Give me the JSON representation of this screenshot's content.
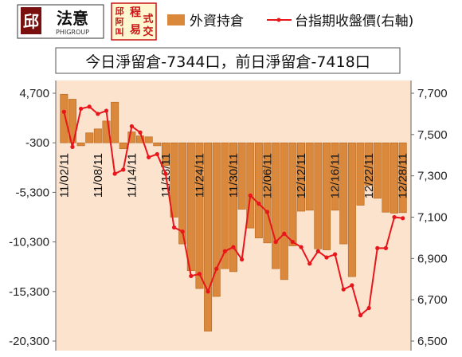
{
  "logos": {
    "left_mark": "邱",
    "left_name": "法意",
    "left_sub": "PHIGROUP",
    "right_chars": [
      "邱",
      "阿",
      "叫",
      "程",
      "式",
      "易",
      "交"
    ]
  },
  "banner": "今日淨留倉-7344口，前日淨留倉-7418口",
  "colors": {
    "bar": "#D9883C",
    "bar_stroke": "#B5651D",
    "line": "#E8151B",
    "plot_bg": "#FBE3CE"
  },
  "chart_data": {
    "type": "bar",
    "legend": [
      {
        "name": "外資持倉",
        "kind": "bar"
      },
      {
        "name": "台指期收盤價(右軸)",
        "kind": "line"
      }
    ],
    "legend_position": "top",
    "grid": false,
    "y_left": {
      "ticks": [
        "4,700",
        "-300",
        "-5,300",
        "-10,300",
        "-15,300",
        "-20,300"
      ],
      "lim": [
        -20300,
        4700
      ]
    },
    "y_right": {
      "ticks": [
        "7,700",
        "7,500",
        "7,300",
        "7,100",
        "6,900",
        "6,700",
        "6,500"
      ],
      "lim": [
        6500,
        7700
      ]
    },
    "date_labels": [
      {
        "text": "11/02/11",
        "index": 0
      },
      {
        "text": "11/08/11",
        "index": 4
      },
      {
        "text": "11/14/11",
        "index": 8
      },
      {
        "text": "11/18/11",
        "index": 12
      },
      {
        "text": "11/24/11",
        "index": 16
      },
      {
        "text": "11/30/11",
        "index": 20
      },
      {
        "text": "12/06/11",
        "index": 24
      },
      {
        "text": "12/12/11",
        "index": 28
      },
      {
        "text": "12/16/11",
        "index": 32
      },
      {
        "text": "12/22/11",
        "index": 36
      },
      {
        "text": "12/28/11",
        "index": 40
      }
    ],
    "positions": {
      "values": [
        4600,
        4100,
        -600,
        700,
        1100,
        1900,
        3800,
        -900,
        800,
        400,
        300,
        -600,
        -2600,
        -7800,
        -10500,
        -13200,
        -15000,
        -19300,
        -15800,
        -13000,
        -13300,
        -7000,
        -8900,
        -9900,
        -10400,
        -13000,
        -14100,
        -10700,
        -7200,
        -7100,
        -11000,
        -11100,
        -7100,
        -10500,
        -13800,
        -6600,
        -4600,
        -5900,
        -7300,
        -7400,
        -7344
      ]
    },
    "price": {
      "values": [
        7610,
        7440,
        7625,
        7635,
        7600,
        7615,
        7310,
        7330,
        7540,
        7510,
        7390,
        7405,
        7310,
        7050,
        7030,
        6815,
        6825,
        6740,
        6850,
        6935,
        6955,
        6895,
        7205,
        7165,
        7125,
        6980,
        7020,
        6980,
        6955,
        6875,
        6935,
        6905,
        6920,
        6750,
        6770,
        6625,
        6660,
        6950,
        6950,
        7100,
        7095
      ]
    }
  }
}
